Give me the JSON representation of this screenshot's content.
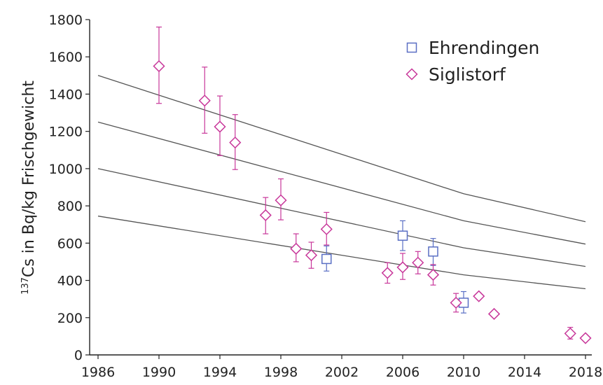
{
  "chart_data": {
    "type": "scatter",
    "title": "",
    "xlabel": "",
    "ylabel": {
      "superscript": "137",
      "text": "Cs in Bq/kg Frischgewicht"
    },
    "xlim": [
      1986,
      2019
    ],
    "ylim": [
      0,
      1800
    ],
    "xticks": [
      "1986",
      "1990",
      "1994",
      "1998",
      "2002",
      "2006",
      "2010",
      "2014",
      "2018"
    ],
    "yticks": [
      "0",
      "200",
      "400",
      "600",
      "800",
      "1000",
      "1200",
      "1400",
      "1600",
      "1800"
    ],
    "grid": false,
    "legend_position": "top-right",
    "colors": {
      "axis": "#222222",
      "curve": "#555555",
      "ehrendingen": "#5a6fc4",
      "siglistorf": "#c8379a"
    },
    "series": [
      {
        "name": "Ehrendingen",
        "marker": "square",
        "points": [
          {
            "x": 2001,
            "y": 515,
            "lo": 450,
            "hi": 585
          },
          {
            "x": 2006,
            "y": 640,
            "lo": 560,
            "hi": 720
          },
          {
            "x": 2008,
            "y": 555,
            "lo": 480,
            "hi": 625
          },
          {
            "x": 2010,
            "y": 280,
            "lo": 225,
            "hi": 340
          }
        ]
      },
      {
        "name": "Siglistorf",
        "marker": "diamond",
        "points": [
          {
            "x": 1990,
            "y": 1550,
            "lo": 1350,
            "hi": 1760
          },
          {
            "x": 1993,
            "y": 1365,
            "lo": 1190,
            "hi": 1545
          },
          {
            "x": 1994,
            "y": 1225,
            "lo": 1070,
            "hi": 1390
          },
          {
            "x": 1995,
            "y": 1140,
            "lo": 995,
            "hi": 1290
          },
          {
            "x": 1997,
            "y": 750,
            "lo": 650,
            "hi": 845
          },
          {
            "x": 1998,
            "y": 830,
            "lo": 725,
            "hi": 945
          },
          {
            "x": 1999,
            "y": 570,
            "lo": 500,
            "hi": 650
          },
          {
            "x": 2000,
            "y": 535,
            "lo": 465,
            "hi": 605
          },
          {
            "x": 2001,
            "y": 675,
            "lo": 590,
            "hi": 765
          },
          {
            "x": 2005,
            "y": 440,
            "lo": 385,
            "hi": 495
          },
          {
            "x": 2006,
            "y": 470,
            "lo": 405,
            "hi": 545
          },
          {
            "x": 2007,
            "y": 495,
            "lo": 435,
            "hi": 555
          },
          {
            "x": 2008,
            "y": 430,
            "lo": 375,
            "hi": 485
          },
          {
            "x": 2009.5,
            "y": 280,
            "lo": 230,
            "hi": 330
          },
          {
            "x": 2011,
            "y": 315,
            "lo": 300,
            "hi": 330
          },
          {
            "x": 2012,
            "y": 220,
            "lo": 205,
            "hi": 235
          },
          {
            "x": 2017,
            "y": 115,
            "lo": 85,
            "hi": 148
          },
          {
            "x": 2018,
            "y": 90,
            "lo": 82,
            "hi": 98
          }
        ]
      }
    ],
    "decay_curves": [
      {
        "points": [
          [
            1986,
            1500
          ],
          [
            2010,
            865
          ],
          [
            2018,
            715
          ]
        ]
      },
      {
        "points": [
          [
            1986,
            1250
          ],
          [
            2010,
            720
          ],
          [
            2018,
            595
          ]
        ]
      },
      {
        "points": [
          [
            1986,
            1000
          ],
          [
            2010,
            575
          ],
          [
            2018,
            475
          ]
        ]
      },
      {
        "points": [
          [
            1986,
            745
          ],
          [
            2010,
            430
          ],
          [
            2018,
            355
          ]
        ]
      }
    ]
  }
}
